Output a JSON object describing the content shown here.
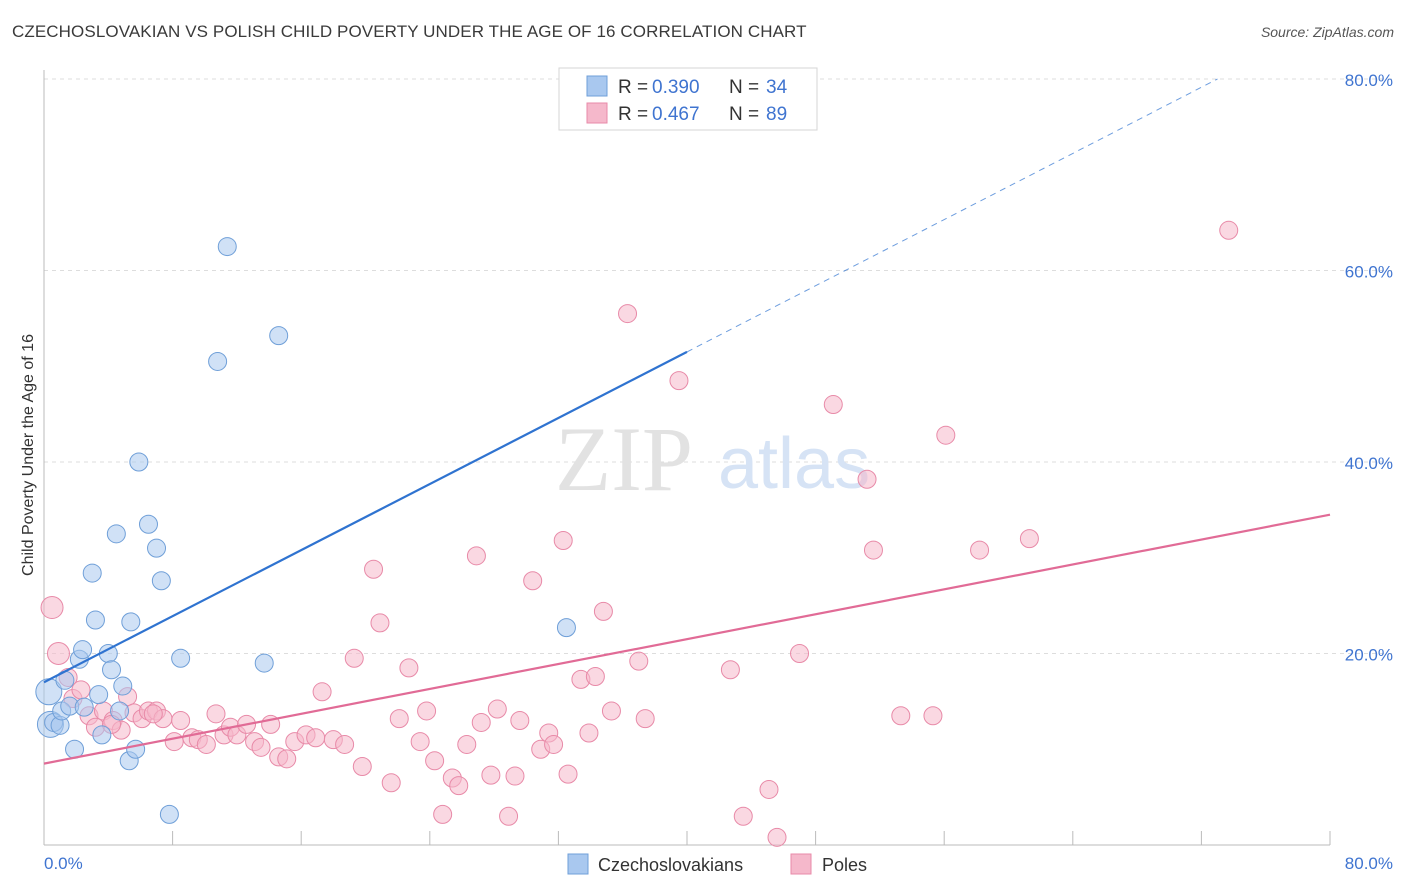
{
  "header": {
    "title": "CZECHOSLOVAKIAN VS POLISH CHILD POVERTY UNDER THE AGE OF 16 CORRELATION CHART",
    "source": "Source: ZipAtlas.com"
  },
  "watermark": {
    "zip": "ZIP",
    "atlas": "atlas"
  },
  "colors": {
    "czech_fill": "#a9c8ef",
    "czech_stroke": "#6f9fd8",
    "czech_line": "#2f73d0",
    "poles_fill": "#f5b8cb",
    "poles_stroke": "#e88aa8",
    "poles_line": "#e16b96",
    "tick_text": "#3f74d0",
    "grid": "#dddddd"
  },
  "legend": {
    "rows": [
      {
        "r_label": "R =",
        "r_value": "0.390",
        "n_label": "N =",
        "n_value": "34"
      },
      {
        "r_label": "R =",
        "r_value": "0.467",
        "n_label": "N =",
        "n_value": "89"
      }
    ],
    "bottom": [
      "Czechoslovakians",
      "Poles"
    ]
  },
  "chart_data": {
    "type": "scatter",
    "xlabel": "",
    "ylabel": "Child Poverty Under the Age of 16",
    "xlim": [
      0,
      80
    ],
    "ylim": [
      0,
      80
    ],
    "x_tick_labels": [
      "0.0%",
      "80.0%"
    ],
    "y_tick_labels": [
      "20.0%",
      "40.0%",
      "60.0%",
      "80.0%"
    ],
    "y_ticks": [
      20,
      40,
      60,
      80
    ],
    "grid": true,
    "legend_position": "top-center",
    "series": [
      {
        "name": "Czechoslovakians",
        "r": 0.39,
        "n": 34,
        "trendline": {
          "x": [
            0,
            40
          ],
          "y": [
            17.0,
            51.5
          ],
          "extended_to": [
            73,
            80
          ]
        },
        "points": [
          [
            0.3,
            16.0
          ],
          [
            0.4,
            12.6
          ],
          [
            0.6,
            12.8
          ],
          [
            1.0,
            12.5
          ],
          [
            1.1,
            14.0
          ],
          [
            1.3,
            17.2
          ],
          [
            1.6,
            14.5
          ],
          [
            1.9,
            10.0
          ],
          [
            2.2,
            19.4
          ],
          [
            2.4,
            20.4
          ],
          [
            2.5,
            14.4
          ],
          [
            3.0,
            28.4
          ],
          [
            3.2,
            23.5
          ],
          [
            3.4,
            15.7
          ],
          [
            3.6,
            11.5
          ],
          [
            4.0,
            20.0
          ],
          [
            4.2,
            18.3
          ],
          [
            4.5,
            32.5
          ],
          [
            4.7,
            14.0
          ],
          [
            4.9,
            16.6
          ],
          [
            5.3,
            8.8
          ],
          [
            5.4,
            23.3
          ],
          [
            5.7,
            10.0
          ],
          [
            5.9,
            40.0
          ],
          [
            6.5,
            33.5
          ],
          [
            7.0,
            31.0
          ],
          [
            7.3,
            27.6
          ],
          [
            7.8,
            3.2
          ],
          [
            8.5,
            19.5
          ],
          [
            10.8,
            50.5
          ],
          [
            11.4,
            62.5
          ],
          [
            13.7,
            19.0
          ],
          [
            14.6,
            53.2
          ],
          [
            32.5,
            22.7
          ]
        ]
      },
      {
        "name": "Poles",
        "r": 0.467,
        "n": 89,
        "trendline": {
          "x": [
            0,
            80
          ],
          "y": [
            8.5,
            34.5
          ]
        },
        "points": [
          [
            0.5,
            24.8
          ],
          [
            0.9,
            20.0
          ],
          [
            1.5,
            17.5
          ],
          [
            1.8,
            15.3
          ],
          [
            2.3,
            16.2
          ],
          [
            2.8,
            13.5
          ],
          [
            3.2,
            12.3
          ],
          [
            3.7,
            14.0
          ],
          [
            4.3,
            13.0
          ],
          [
            4.8,
            12.0
          ],
          [
            5.2,
            15.5
          ],
          [
            5.6,
            13.8
          ],
          [
            6.1,
            13.2
          ],
          [
            6.5,
            14.0
          ],
          [
            7.0,
            14.0
          ],
          [
            7.4,
            13.2
          ],
          [
            8.1,
            10.8
          ],
          [
            8.5,
            13.0
          ],
          [
            9.2,
            11.2
          ],
          [
            9.6,
            11.0
          ],
          [
            10.1,
            10.5
          ],
          [
            10.7,
            13.7
          ],
          [
            11.2,
            11.5
          ],
          [
            11.6,
            12.3
          ],
          [
            12.0,
            11.5
          ],
          [
            12.6,
            12.6
          ],
          [
            13.1,
            10.8
          ],
          [
            13.5,
            10.2
          ],
          [
            14.1,
            12.6
          ],
          [
            14.6,
            9.2
          ],
          [
            15.1,
            9.0
          ],
          [
            15.6,
            10.8
          ],
          [
            16.3,
            11.5
          ],
          [
            16.9,
            11.2
          ],
          [
            17.3,
            16.0
          ],
          [
            18.0,
            11.0
          ],
          [
            18.7,
            10.5
          ],
          [
            19.3,
            19.5
          ],
          [
            19.8,
            8.2
          ],
          [
            20.5,
            28.8
          ],
          [
            20.9,
            23.2
          ],
          [
            21.6,
            6.5
          ],
          [
            22.1,
            13.2
          ],
          [
            22.7,
            18.5
          ],
          [
            23.4,
            10.8
          ],
          [
            23.8,
            14.0
          ],
          [
            24.3,
            8.8
          ],
          [
            24.8,
            3.2
          ],
          [
            25.4,
            7.0
          ],
          [
            25.8,
            6.2
          ],
          [
            26.3,
            10.5
          ],
          [
            26.9,
            30.2
          ],
          [
            27.2,
            12.8
          ],
          [
            27.8,
            7.3
          ],
          [
            28.2,
            14.2
          ],
          [
            28.9,
            3.0
          ],
          [
            29.3,
            7.2
          ],
          [
            29.6,
            13.0
          ],
          [
            30.4,
            27.6
          ],
          [
            30.9,
            10.0
          ],
          [
            31.4,
            11.7
          ],
          [
            31.7,
            10.5
          ],
          [
            32.3,
            31.8
          ],
          [
            32.6,
            7.4
          ],
          [
            33.4,
            17.3
          ],
          [
            33.9,
            11.7
          ],
          [
            34.3,
            17.6
          ],
          [
            34.8,
            24.4
          ],
          [
            35.3,
            14.0
          ],
          [
            36.3,
            55.5
          ],
          [
            37.0,
            19.2
          ],
          [
            37.4,
            13.2
          ],
          [
            39.5,
            48.5
          ],
          [
            42.7,
            18.3
          ],
          [
            43.5,
            3.0
          ],
          [
            45.1,
            5.8
          ],
          [
            45.6,
            0.8
          ],
          [
            47.0,
            20.0
          ],
          [
            49.1,
            46.0
          ],
          [
            51.2,
            38.2
          ],
          [
            51.6,
            30.8
          ],
          [
            53.3,
            13.5
          ],
          [
            55.3,
            13.5
          ],
          [
            56.1,
            42.8
          ],
          [
            58.2,
            30.8
          ],
          [
            61.3,
            32.0
          ],
          [
            73.7,
            64.2
          ],
          [
            4.2,
            12.6
          ],
          [
            6.8,
            13.7
          ]
        ]
      }
    ]
  }
}
